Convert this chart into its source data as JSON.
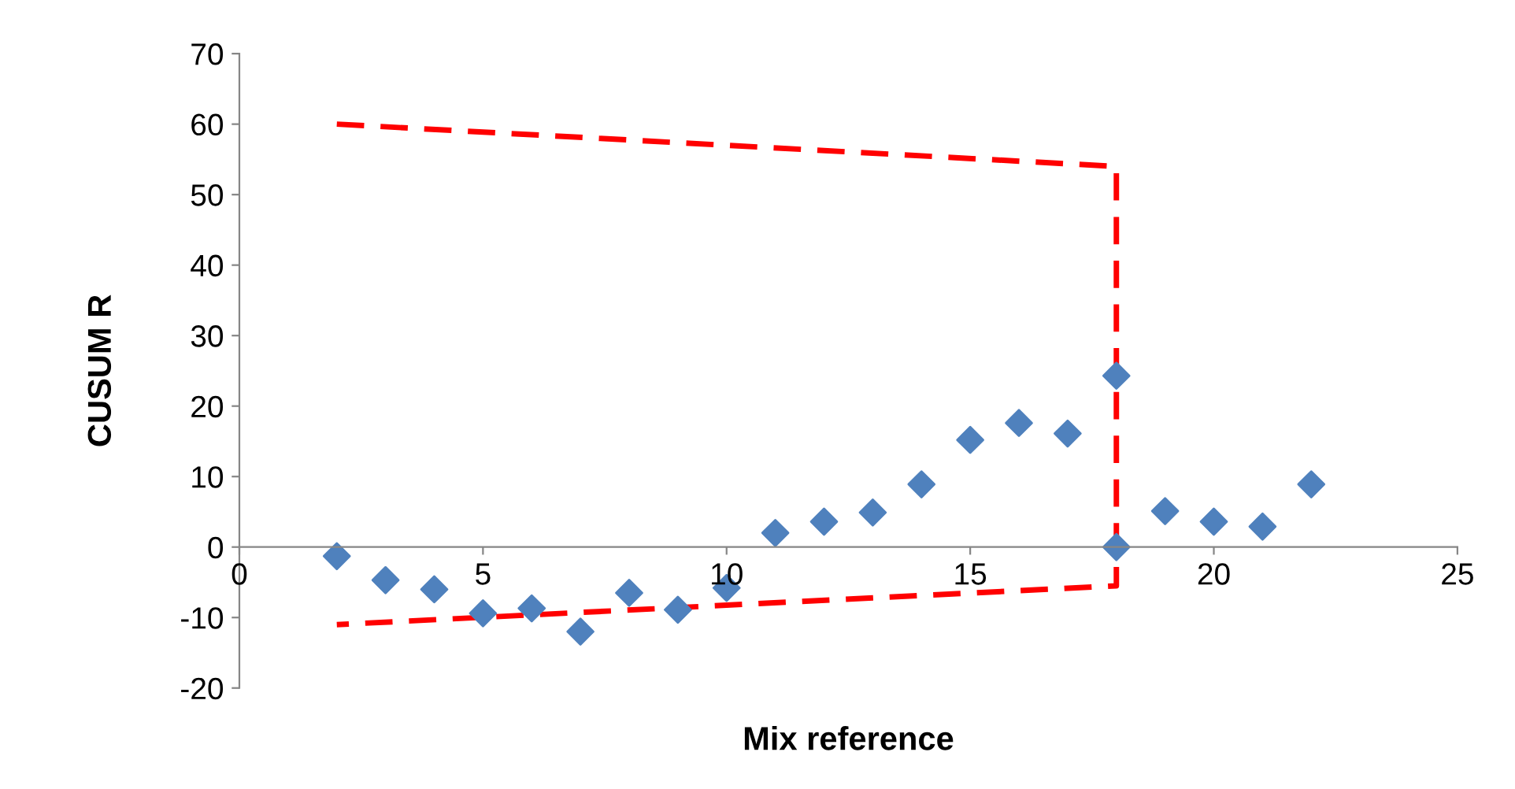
{
  "chart_data": {
    "type": "scatter",
    "xlabel": "Mix reference",
    "ylabel": "CUSUM R",
    "series": [
      {
        "color": "#4f81bd",
        "marker": "diamond",
        "x": [
          2,
          3,
          4,
          5,
          6,
          7,
          8,
          9,
          10,
          11,
          12,
          13,
          14,
          15,
          16,
          17,
          18,
          18,
          19,
          20,
          21,
          22
        ],
        "values": [
          -1.3,
          -4.7,
          -6,
          -9.4,
          -8.7,
          -12,
          -6.5,
          -8.9,
          -5.8,
          2,
          3.6,
          4.9,
          8.9,
          15.2,
          17.6,
          16.1,
          24.3,
          0,
          5.1,
          3.6,
          2.9,
          8.9
        ]
      },
      {
        "type": "line",
        "color": "#ff0000",
        "line_style": "dashed",
        "marker": "none",
        "x": [
          2,
          18,
          18,
          2
        ],
        "values": [
          60,
          54,
          -5.5,
          -11
        ]
      }
    ],
    "xlim": [
      0,
      25
    ],
    "xticks": [
      0,
      5,
      10,
      15,
      20,
      25
    ],
    "ylim": [
      -20,
      70
    ],
    "yticks": [
      -20,
      -10,
      0,
      10,
      20,
      30,
      40,
      50,
      60,
      70
    ],
    "grid": false,
    "legend": false
  }
}
